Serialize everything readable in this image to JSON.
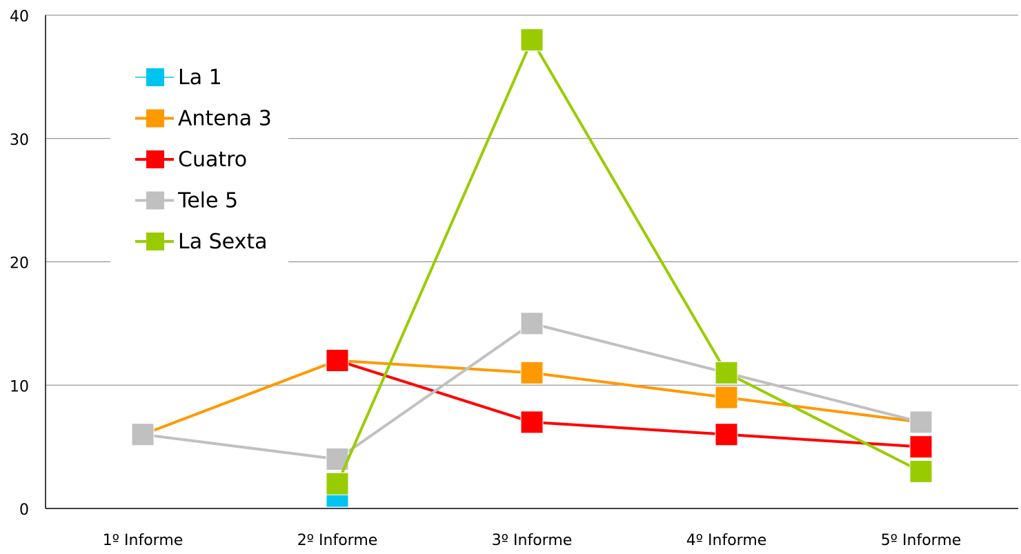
{
  "chart_data": {
    "type": "line",
    "title": "",
    "xlabel": "",
    "ylabel": "",
    "categories": [
      "1º Informe",
      "2º Informe",
      "3º Informe",
      "4º Informe",
      "5º Informe"
    ],
    "ylim": [
      0,
      40
    ],
    "yticks": [
      "0",
      "10",
      "20",
      "30",
      "40"
    ],
    "grid": "horizontal",
    "legend_position": "top-left",
    "series": [
      {
        "name": "La 1",
        "color": "#00c4f0",
        "values": [
          null,
          1,
          null,
          null,
          null
        ]
      },
      {
        "name": "Antena 3",
        "color": "#ff9900",
        "values": [
          6,
          12,
          11,
          9,
          7
        ]
      },
      {
        "name": "Cuatro",
        "color": "#ff0000",
        "values": [
          null,
          12,
          7,
          6,
          5
        ]
      },
      {
        "name": "Tele 5",
        "color": "#c0c0c0",
        "values": [
          6,
          4,
          15,
          11,
          7
        ]
      },
      {
        "name": "La Sexta",
        "color": "#99cc00",
        "values": [
          null,
          2,
          38,
          11,
          3
        ]
      }
    ]
  }
}
